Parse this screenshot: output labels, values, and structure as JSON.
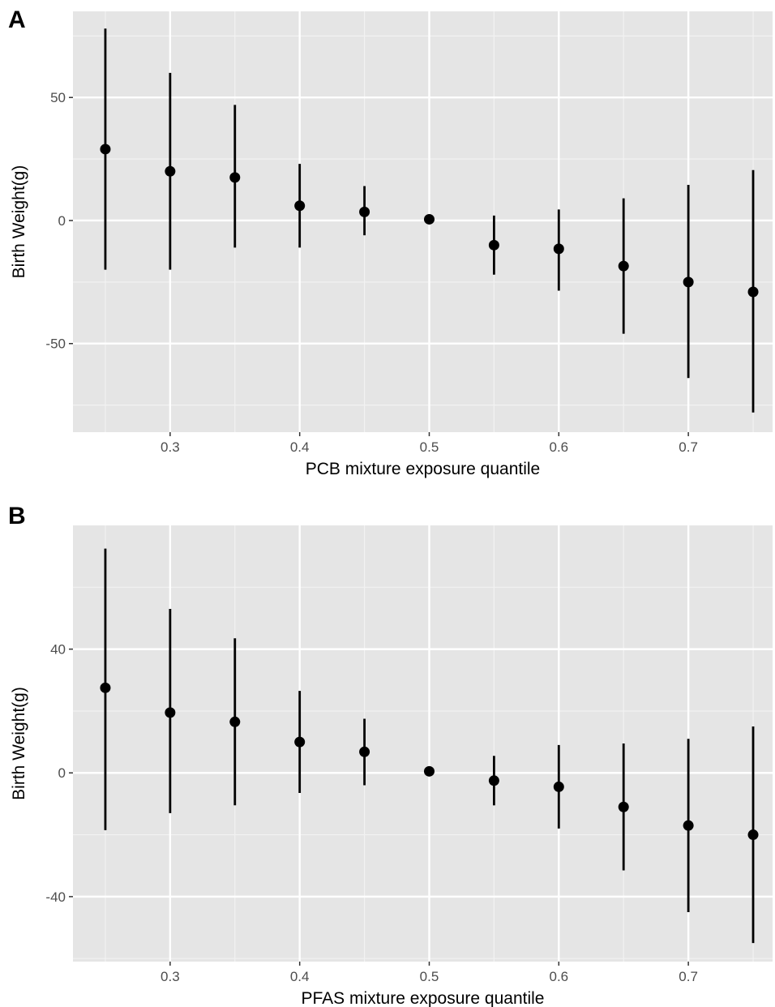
{
  "chart_data": [
    {
      "type": "errorbar",
      "panel_label": "A",
      "xlabel": "PCB mixture exposure quantile",
      "ylabel": "Birth Weight(g)",
      "xlim": [
        0.225,
        0.765
      ],
      "ylim": [
        -86,
        85
      ],
      "x_ticks": [
        0.3,
        0.4,
        0.5,
        0.6,
        0.7
      ],
      "x_tick_labels": [
        "0.3",
        "0.4",
        "0.5",
        "0.6",
        "0.7"
      ],
      "y_ticks": [
        50,
        0,
        -50
      ],
      "y_tick_labels": [
        "50",
        "0",
        "-50"
      ],
      "grid": true,
      "background": "#e5e5e5",
      "points": [
        {
          "x": 0.25,
          "y": 29,
          "lower": -20,
          "upper": 78
        },
        {
          "x": 0.3,
          "y": 20,
          "lower": -20,
          "upper": 60
        },
        {
          "x": 0.35,
          "y": 17.5,
          "lower": -11,
          "upper": 47
        },
        {
          "x": 0.4,
          "y": 6,
          "lower": -11,
          "upper": 23
        },
        {
          "x": 0.45,
          "y": 3.5,
          "lower": -6,
          "upper": 14
        },
        {
          "x": 0.5,
          "y": 0.5,
          "lower": 0.5,
          "upper": 0.5
        },
        {
          "x": 0.55,
          "y": -10,
          "lower": -22,
          "upper": 2
        },
        {
          "x": 0.6,
          "y": -11.5,
          "lower": -28.5,
          "upper": 4.5
        },
        {
          "x": 0.65,
          "y": -18.5,
          "lower": -46,
          "upper": 9
        },
        {
          "x": 0.7,
          "y": -25,
          "lower": -64,
          "upper": 14.5
        },
        {
          "x": 0.75,
          "y": -29,
          "lower": -78,
          "upper": 20.5
        }
      ]
    },
    {
      "type": "errorbar",
      "panel_label": "B",
      "xlabel": "PFAS mixture exposure quantile",
      "ylabel": "Birth Weight(g)",
      "xlim": [
        0.225,
        0.765
      ],
      "ylim": [
        -61,
        80
      ],
      "x_ticks": [
        0.3,
        0.4,
        0.5,
        0.6,
        0.7
      ],
      "x_tick_labels": [
        "0.3",
        "0.4",
        "0.5",
        "0.6",
        "0.7"
      ],
      "y_ticks": [
        40,
        0,
        -40
      ],
      "y_tick_labels": [
        "40",
        "0",
        "-40"
      ],
      "grid": true,
      "background": "#e5e5e5",
      "points": [
        {
          "x": 0.25,
          "y": 27.5,
          "lower": -18.5,
          "upper": 72.5
        },
        {
          "x": 0.3,
          "y": 19.5,
          "lower": -13,
          "upper": 53
        },
        {
          "x": 0.35,
          "y": 16.5,
          "lower": -10.5,
          "upper": 43.5
        },
        {
          "x": 0.4,
          "y": 10,
          "lower": -6.5,
          "upper": 26.5
        },
        {
          "x": 0.45,
          "y": 6.8,
          "lower": -4,
          "upper": 17.5
        },
        {
          "x": 0.5,
          "y": 0.5,
          "lower": 0.5,
          "upper": 0.5
        },
        {
          "x": 0.55,
          "y": -2.5,
          "lower": -10.5,
          "upper": 5.5
        },
        {
          "x": 0.6,
          "y": -4.5,
          "lower": -18,
          "upper": 9
        },
        {
          "x": 0.65,
          "y": -11,
          "lower": -31.5,
          "upper": 9.5
        },
        {
          "x": 0.7,
          "y": -17,
          "lower": -45,
          "upper": 11
        },
        {
          "x": 0.75,
          "y": -20,
          "lower": -55,
          "upper": 15
        }
      ]
    }
  ]
}
